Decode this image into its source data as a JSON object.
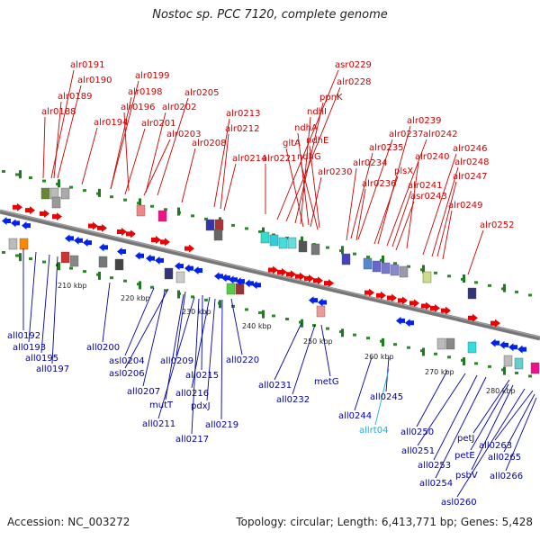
{
  "title": "Nostoc sp. PCC 7120, complete genome",
  "footer": {
    "accession": "Accession: NC_003272",
    "summary": "Topology: circular; Length: 6,413,771 bp; Genes: 5,428"
  },
  "colors": {
    "forward_label": "#cc0000",
    "reverse_label": "#0000aa",
    "rna_label": "#22aadd",
    "forward_arrow": "#ee0000",
    "reverse_arrow": "#0022ee",
    "backbone": "#777777",
    "dots": "#2a8a2a",
    "tick_label": "#222222"
  },
  "kbp_ticks": [
    "210 kbp",
    "220 kbp",
    "230 kbp",
    "240 kbp",
    "250 kbp",
    "260 kbp",
    "270 kbp",
    "280 kbp"
  ],
  "forward_genes": [
    "alr0191",
    "alr0190",
    "alr0189",
    "alr0188",
    "alr0194",
    "alr0199",
    "alr0198",
    "alr0196",
    "alr0201",
    "alr0205",
    "alr0202",
    "alr0203",
    "alr0208",
    "alr0213",
    "alr0212",
    "alr0214",
    "alr0221",
    "asr0229",
    "alr0228",
    "ppnK",
    "ndhI",
    "ndhA",
    "gltA",
    "ndhE",
    "ndhG",
    "alr0230",
    "alr0239",
    "alr0237",
    "alr0242",
    "alr0235",
    "alr0234",
    "plsX",
    "alr0240",
    "alr0246",
    "alr0248",
    "alr0236",
    "alr0241",
    "alr0247",
    "asr0243",
    "alr0249",
    "alr0252"
  ],
  "reverse_genes": [
    "all0192",
    "all0193",
    "all0195",
    "all0197",
    "all0200",
    "asl0204",
    "asl0206",
    "all0209",
    "all0207",
    "mutT",
    "all0215",
    "all0216",
    "all0211",
    "pdxJ",
    "all0219",
    "all0217",
    "all0220",
    "all0231",
    "all0232",
    "metG",
    "all0244",
    "all0245",
    "allrt04",
    "all0250",
    "all0251",
    "all0253",
    "all0254",
    "petJ",
    "petE",
    "psbV",
    "asl0260",
    "all0263",
    "all0265",
    "all0266"
  ]
}
